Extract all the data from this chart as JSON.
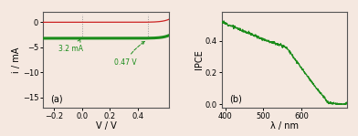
{
  "panel_a": {
    "xlim": [
      -0.28,
      0.62
    ],
    "ylim": [
      -17,
      2
    ],
    "xlabel": "V / V",
    "ylabel": "i / mA",
    "xticks": [
      -0.2,
      0.0,
      0.2,
      0.4
    ],
    "yticks": [
      -15,
      -10,
      -5,
      0
    ],
    "label": "(a)",
    "isc": -3.2,
    "voc": 0.47,
    "annotation_isc": "3.2 mA",
    "annotation_voc": "0.47 V",
    "dark_line_color": "#cc2222",
    "light_line_color": "#1a8c1a",
    "dotted_color": "#999999",
    "annotation_color": "#1a8c1a"
  },
  "panel_b": {
    "xlim": [
      390,
      720
    ],
    "ylim": [
      -0.02,
      0.58
    ],
    "xlabel": "λ / nm",
    "ylabel": "IPCE",
    "xticks": [
      400,
      500,
      600
    ],
    "yticks": [
      0.0,
      0.2,
      0.4
    ],
    "label": "(b)",
    "line_color": "#1a8c1a"
  },
  "background_color": "#f5e8e0"
}
